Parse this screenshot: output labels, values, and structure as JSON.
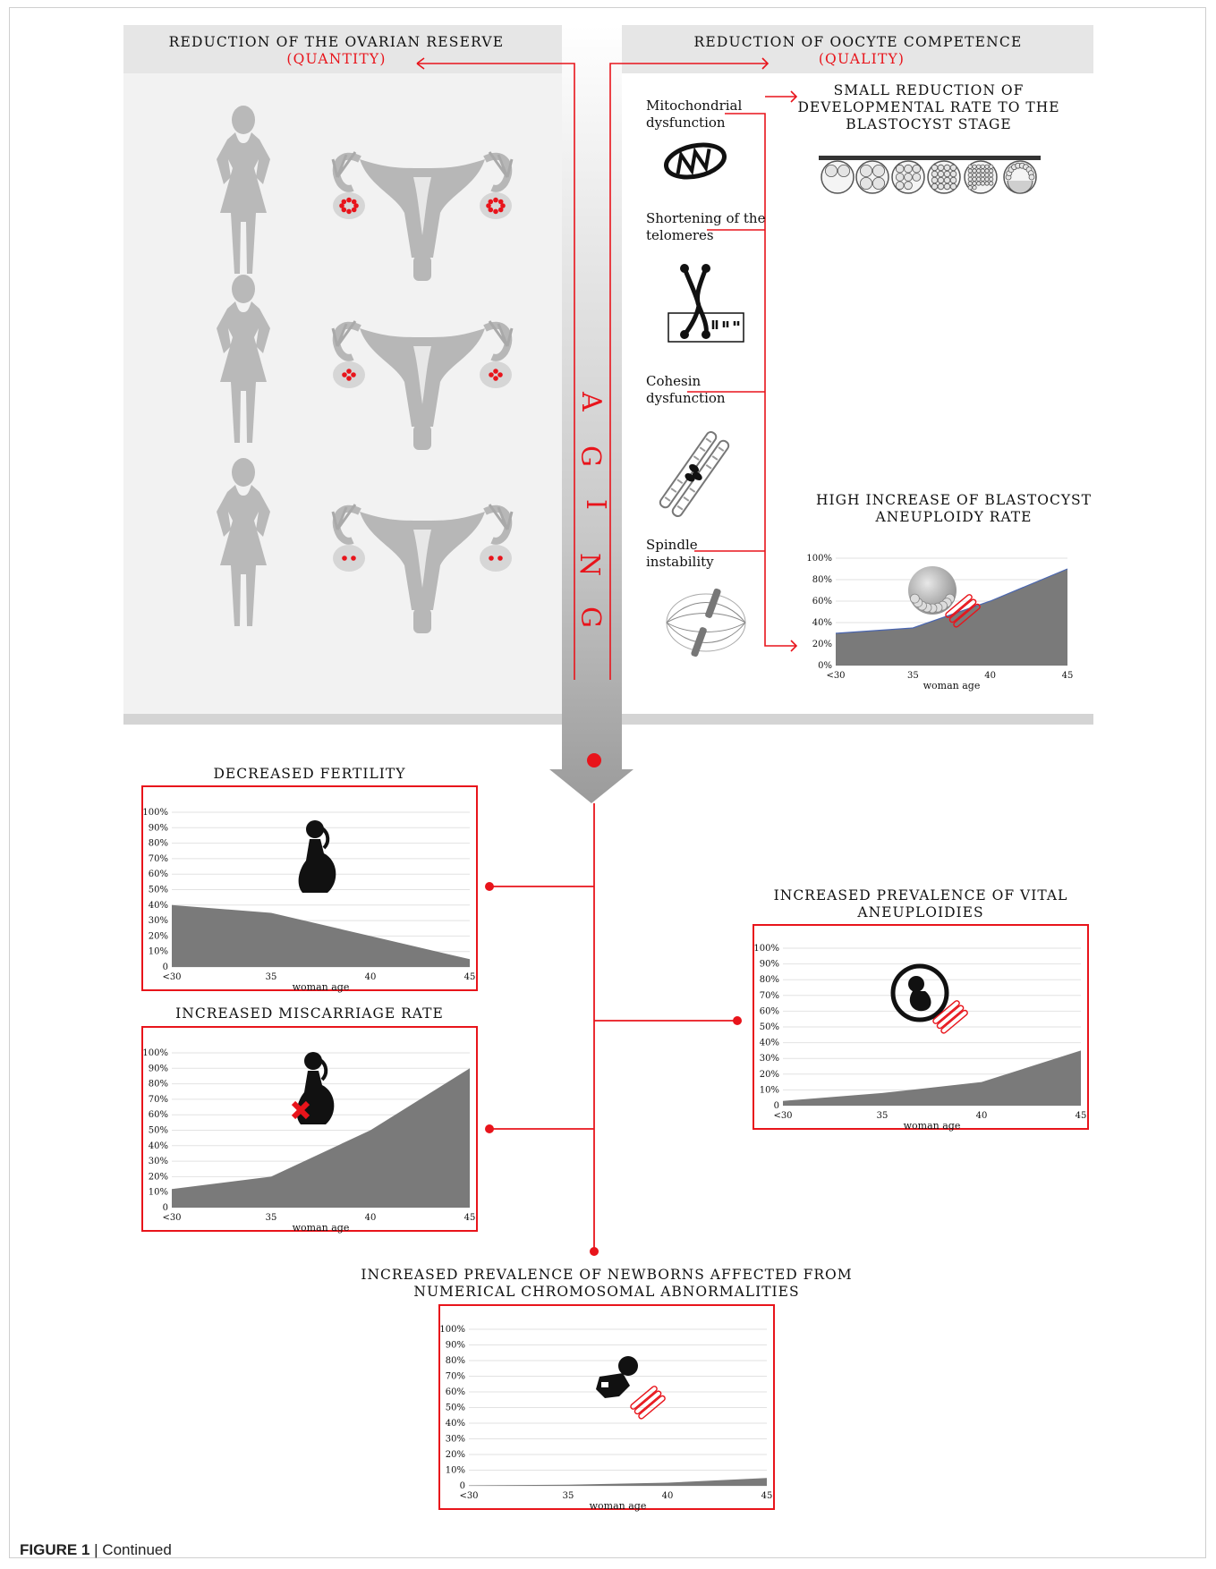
{
  "left_panel": {
    "title": "REDUCTION OF THE OVARIAN RESERVE",
    "subtitle": "(QUANTITY)",
    "rows": [
      {
        "follicles_per_ovary": 8
      },
      {
        "follicles_per_ovary": 4
      },
      {
        "follicles_per_ovary": 2
      }
    ]
  },
  "right_panel": {
    "title": "REDUCTION OF OOCYTE COMPETENCE",
    "subtitle": "(QUALITY)",
    "causes": [
      {
        "label": "Mitochondrial dysfunction",
        "line1": "Mitochondrial",
        "line2": "dysfunction",
        "icon": "mitochondrion-icon"
      },
      {
        "label": "Shortening of the telomeres",
        "line1": "Shortening of the",
        "line2": "telomeres",
        "icon": "telomere-chromosome-icon"
      },
      {
        "label": "Cohesin dysfunction",
        "line1": "Cohesin",
        "line2": "dysfunction",
        "icon": "cohesin-chromosome-icon"
      },
      {
        "label": "Spindle instability",
        "line1": "Spindle",
        "line2": "instability",
        "icon": "spindle-icon"
      }
    ],
    "effect_1": {
      "line1": "SMALL REDUCTION OF",
      "line2": "DEVELOPMENTAL RATE TO THE",
      "line3": "BLASTOCYST STAGE"
    },
    "effect_2": {
      "line1": "HIGH INCREASE OF BLASTOCYST",
      "line2": "ANEUPLOIDY RATE"
    }
  },
  "center_label": "AGING",
  "colors": {
    "accent": "#e8141b",
    "area": "#7a7a7a",
    "silhouette": "#b9b9b9",
    "panel_bg": "#e6e6e6"
  },
  "chart_data": [
    {
      "id": "blastocyst-aneuploidy",
      "type": "area",
      "title": "HIGH INCREASE OF BLASTOCYST ANEUPLOIDY RATE",
      "categories": [
        "<30",
        "35",
        "40",
        "45"
      ],
      "values": [
        30,
        35,
        60,
        90
      ],
      "yticks": [
        "0%",
        "20%",
        "40%",
        "60%",
        "80%",
        "100%"
      ],
      "xlabel": "woman age",
      "ylim": [
        0,
        100
      ],
      "icon": "blastocyst-icon"
    },
    {
      "id": "decreased-fertility",
      "type": "area",
      "title": "DECREASED FERTILITY",
      "categories": [
        "<30",
        "35",
        "40",
        "45"
      ],
      "values": [
        40,
        35,
        20,
        5
      ],
      "yticks": [
        "0",
        "10%",
        "20%",
        "30%",
        "40%",
        "50%",
        "60%",
        "70%",
        "80%",
        "90%",
        "100%"
      ],
      "xlabel": "woman age",
      "ylim": [
        0,
        100
      ],
      "icon": "pregnant-woman-icon"
    },
    {
      "id": "miscarriage-rate",
      "type": "area",
      "title": "INCREASED MISCARRIAGE RATE",
      "categories": [
        "<30",
        "35",
        "40",
        "45"
      ],
      "values": [
        12,
        20,
        50,
        90
      ],
      "yticks": [
        "0",
        "10%",
        "20%",
        "30%",
        "40%",
        "50%",
        "60%",
        "70%",
        "80%",
        "90%",
        "100%"
      ],
      "xlabel": "woman age",
      "ylim": [
        0,
        100
      ],
      "icon": "pregnant-woman-miscarriage-icon"
    },
    {
      "id": "vital-aneuploidies",
      "type": "area",
      "title": "INCREASED PREVALENCE OF VITAL ANEUPLOIDIES",
      "categories": [
        "<30",
        "35",
        "40",
        "45"
      ],
      "values": [
        3,
        8,
        15,
        35
      ],
      "yticks": [
        "0",
        "10%",
        "20%",
        "30%",
        "40%",
        "50%",
        "60%",
        "70%",
        "80%",
        "90%",
        "100%"
      ],
      "xlabel": "woman age",
      "ylim": [
        0,
        100
      ],
      "icon": "fetus-icon"
    },
    {
      "id": "newborn-abnormalities",
      "type": "area",
      "title": "INCREASED PREVALENCE OF NEWBORNS AFFECTED FROM NUMERICAL CHROMOSOMAL ABNORMALITIES",
      "categories": [
        "<30",
        "35",
        "40",
        "45"
      ],
      "values": [
        0.3,
        0.7,
        2,
        5
      ],
      "yticks": [
        "0",
        "10%",
        "20%",
        "30%",
        "40%",
        "50%",
        "60%",
        "70%",
        "80%",
        "90%",
        "100%"
      ],
      "xlabel": "woman age",
      "ylim": [
        0,
        100
      ],
      "icon": "baby-icon"
    }
  ],
  "caption": {
    "label": "FIGURE 1",
    "separator": "|",
    "text": "Continued"
  }
}
